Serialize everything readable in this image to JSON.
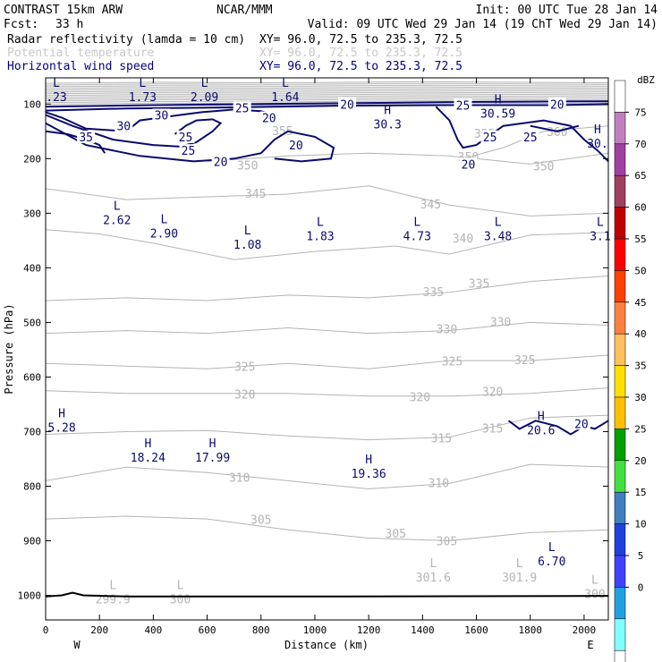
{
  "header": {
    "model": "CONTRAST 15km ARW",
    "org": "NCAR/MMM",
    "init": "Init: 00 UTC Tue 28 Jan 14",
    "fcst_label": "Fcst:",
    "fcst_value": "33 h",
    "valid": "Valid: 09 UTC Wed 29 Jan 14 (19 ChT Wed 29 Jan 14)",
    "fields": [
      {
        "name": "Radar reflectivity (lamda = 10 cm)",
        "xy": "XY=  96.0, 72.5 to 235.3, 72.5",
        "color": "#000000"
      },
      {
        "name": "Potential temperature",
        "xy": "XY=  96.0, 72.5 to 235.3, 72.5",
        "color": "#c8c8c8"
      },
      {
        "name": "Horizontal wind speed",
        "xy": "XY=  96.0, 72.5 to 235.3, 72.5",
        "color": "#000080"
      }
    ]
  },
  "colors": {
    "theta": "#b4b4b4",
    "wind": "#0a0a6e",
    "terrain": "#000000"
  },
  "chart_data": {
    "type": "cross-section contour",
    "xlabel": "Distance (km)",
    "ylabel": "Pressure (hPa)",
    "xlim": [
      0,
      2090
    ],
    "ylim": [
      1045,
      52
    ],
    "x_ticks": [
      0,
      200,
      400,
      600,
      800,
      1000,
      1200,
      1400,
      1600,
      1800,
      2000
    ],
    "y_ticks": [
      100,
      200,
      300,
      400,
      500,
      600,
      700,
      800,
      900,
      1000
    ],
    "x_ends": [
      "W",
      "E"
    ],
    "colorbar": {
      "title": "dBZ",
      "levels": [
        "75",
        "70",
        "65",
        "60",
        "55",
        "50",
        "45",
        "40",
        "35",
        "30",
        "25",
        "20",
        "15",
        "10",
        "5",
        "0"
      ],
      "colors": [
        "#ffffff",
        "#c080c0",
        "#a040a0",
        "#a04060",
        "#c00000",
        "#ff0000",
        "#ff4000",
        "#ff8040",
        "#ffc060",
        "#ffe000",
        "#ffc000",
        "#00a000",
        "#40e040",
        "#4080c0",
        "#2040e0",
        "#4040ff",
        "#20a0e0",
        "#80ffff",
        "#ffffff"
      ]
    },
    "theta_isolines": [
      {
        "value": "360",
        "points": [
          [
            1550,
            200
          ],
          [
            1700,
            180
          ],
          [
            1850,
            150
          ],
          [
            2090,
            140
          ]
        ]
      },
      {
        "value": "350",
        "points": [
          [
            600,
            205
          ],
          [
            900,
            195
          ],
          [
            1200,
            190
          ],
          [
            1500,
            195
          ],
          [
            1800,
            210
          ],
          [
            2090,
            190
          ]
        ]
      },
      {
        "value": "345",
        "points": [
          [
            0,
            255
          ],
          [
            300,
            275
          ],
          [
            600,
            270
          ],
          [
            900,
            265
          ],
          [
            1200,
            250
          ],
          [
            1500,
            285
          ],
          [
            1800,
            305
          ],
          [
            2090,
            300
          ]
        ]
      },
      {
        "value": "340",
        "points": [
          [
            0,
            330
          ],
          [
            200,
            338
          ],
          [
            400,
            355
          ],
          [
            700,
            385
          ],
          [
            1000,
            370
          ],
          [
            1300,
            360
          ],
          [
            1500,
            375
          ],
          [
            1800,
            340
          ],
          [
            2090,
            335
          ]
        ]
      },
      {
        "value": "335",
        "points": [
          [
            0,
            460
          ],
          [
            300,
            455
          ],
          [
            600,
            460
          ],
          [
            900,
            450
          ],
          [
            1200,
            455
          ],
          [
            1500,
            445
          ],
          [
            1800,
            425
          ],
          [
            2090,
            415
          ]
        ]
      },
      {
        "value": "330",
        "points": [
          [
            0,
            520
          ],
          [
            300,
            515
          ],
          [
            600,
            520
          ],
          [
            900,
            510
          ],
          [
            1200,
            520
          ],
          [
            1500,
            515
          ],
          [
            1800,
            500
          ],
          [
            2090,
            505
          ]
        ]
      },
      {
        "value": "325",
        "points": [
          [
            0,
            575
          ],
          [
            300,
            580
          ],
          [
            600,
            585
          ],
          [
            900,
            575
          ],
          [
            1200,
            585
          ],
          [
            1500,
            570
          ],
          [
            1800,
            570
          ],
          [
            2090,
            560
          ]
        ]
      },
      {
        "value": "320",
        "points": [
          [
            0,
            625
          ],
          [
            300,
            630
          ],
          [
            600,
            630
          ],
          [
            900,
            630
          ],
          [
            1200,
            635
          ],
          [
            1500,
            635
          ],
          [
            1800,
            630
          ],
          [
            2090,
            620
          ]
        ]
      },
      {
        "value": "315",
        "points": [
          [
            0,
            705
          ],
          [
            300,
            700
          ],
          [
            600,
            698
          ],
          [
            900,
            708
          ],
          [
            1200,
            715
          ],
          [
            1500,
            710
          ],
          [
            1800,
            675
          ],
          [
            2090,
            670
          ]
        ]
      },
      {
        "value": "310",
        "points": [
          [
            0,
            790
          ],
          [
            300,
            765
          ],
          [
            600,
            775
          ],
          [
            900,
            790
          ],
          [
            1200,
            805
          ],
          [
            1500,
            795
          ],
          [
            1800,
            760
          ],
          [
            2090,
            765
          ]
        ]
      },
      {
        "value": "305",
        "points": [
          [
            0,
            860
          ],
          [
            300,
            855
          ],
          [
            600,
            860
          ],
          [
            900,
            880
          ],
          [
            1200,
            895
          ],
          [
            1500,
            900
          ],
          [
            1800,
            885
          ],
          [
            2090,
            880
          ]
        ]
      }
    ],
    "theta_labels": [
      {
        "text": "360",
        "x": 1900,
        "p": 152
      },
      {
        "text": "355",
        "x": 880,
        "p": 150
      },
      {
        "text": "355",
        "x": 1630,
        "p": 155
      },
      {
        "text": "350",
        "x": 750,
        "p": 213
      },
      {
        "text": "350",
        "x": 1570,
        "p": 198
      },
      {
        "text": "350",
        "x": 1850,
        "p": 215
      },
      {
        "text": "345",
        "x": 780,
        "p": 265
      },
      {
        "text": "345",
        "x": 1430,
        "p": 285
      },
      {
        "text": "340",
        "x": 1550,
        "p": 347
      },
      {
        "text": "335",
        "x": 1440,
        "p": 445
      },
      {
        "text": "335",
        "x": 1610,
        "p": 430
      },
      {
        "text": "330",
        "x": 1490,
        "p": 513
      },
      {
        "text": "330",
        "x": 1690,
        "p": 500
      },
      {
        "text": "325",
        "x": 740,
        "p": 582
      },
      {
        "text": "325",
        "x": 1510,
        "p": 572
      },
      {
        "text": "325",
        "x": 1780,
        "p": 570
      },
      {
        "text": "320",
        "x": 740,
        "p": 633
      },
      {
        "text": "320",
        "x": 1390,
        "p": 638
      },
      {
        "text": "320",
        "x": 1660,
        "p": 628
      },
      {
        "text": "315",
        "x": 1470,
        "p": 713
      },
      {
        "text": "315",
        "x": 1660,
        "p": 695
      },
      {
        "text": "310",
        "x": 720,
        "p": 785
      },
      {
        "text": "310",
        "x": 1460,
        "p": 795
      },
      {
        "text": "305",
        "x": 800,
        "p": 862
      },
      {
        "text": "305",
        "x": 1300,
        "p": 888
      },
      {
        "text": "305",
        "x": 1490,
        "p": 902
      }
    ],
    "extrema": [
      {
        "type": "L",
        "value": "2.62",
        "x": 265,
        "p": 300,
        "field": "wind"
      },
      {
        "type": "L",
        "value": "2.90",
        "x": 440,
        "p": 325,
        "field": "wind"
      },
      {
        "type": "L",
        "value": "1.08",
        "x": 750,
        "p": 345,
        "field": "wind"
      },
      {
        "type": "L",
        "value": "1.83",
        "x": 1020,
        "p": 330,
        "field": "wind"
      },
      {
        "type": "L",
        "value": "4.73",
        "x": 1380,
        "p": 330,
        "field": "wind"
      },
      {
        "type": "L",
        "value": "3.48",
        "x": 1680,
        "p": 330,
        "field": "wind"
      },
      {
        "type": "L",
        "value": "3.1",
        "x": 2060,
        "p": 330,
        "field": "wind"
      },
      {
        "type": "L",
        "value": ".23",
        "x": 40,
        "p": 75,
        "field": "wind"
      },
      {
        "type": "L",
        "value": "1.73",
        "x": 360,
        "p": 75,
        "field": "wind"
      },
      {
        "type": "L",
        "value": "2.09",
        "x": 590,
        "p": 75,
        "field": "wind"
      },
      {
        "type": "L",
        "value": "1.64",
        "x": 890,
        "p": 75,
        "field": "wind"
      },
      {
        "type": "H",
        "value": "30.3",
        "x": 1270,
        "p": 125,
        "field": "wind"
      },
      {
        "type": "H",
        "value": "30.59",
        "x": 1680,
        "p": 105,
        "field": "wind"
      },
      {
        "type": "H",
        "value": "30.",
        "x": 2050,
        "p": 160,
        "field": "wind"
      },
      {
        "type": "H",
        "value": "5.28",
        "x": 60,
        "p": 680,
        "field": "wind"
      },
      {
        "type": "H",
        "value": "18.24",
        "x": 380,
        "p": 735,
        "field": "wind"
      },
      {
        "type": "H",
        "value": "17.99",
        "x": 620,
        "p": 735,
        "field": "wind"
      },
      {
        "type": "H",
        "value": "19.36",
        "x": 1200,
        "p": 765,
        "field": "wind"
      },
      {
        "type": "H",
        "value": "20.6",
        "x": 1840,
        "p": 685,
        "field": "wind"
      },
      {
        "type": "L",
        "value": "6.70",
        "x": 1880,
        "p": 925,
        "field": "wind"
      },
      {
        "type": "L",
        "value": "301.6",
        "x": 1440,
        "p": 955,
        "field": "theta"
      },
      {
        "type": "L",
        "value": "301.9",
        "x": 1760,
        "p": 955,
        "field": "theta"
      },
      {
        "type": "L",
        "value": "299.9",
        "x": 250,
        "p": 995,
        "field": "theta"
      },
      {
        "type": "L",
        "value": "300",
        "x": 500,
        "p": 995,
        "field": "theta"
      },
      {
        "type": "L",
        "value": "300",
        "x": 2040,
        "p": 985,
        "field": "theta"
      }
    ],
    "wind_isolines": [
      {
        "value": "25",
        "points": [
          [
            0,
            112
          ],
          [
            300,
            108
          ],
          [
            700,
            106
          ],
          [
            1100,
            103
          ],
          [
            1500,
            102
          ],
          [
            1900,
            102
          ],
          [
            2090,
            100
          ]
        ]
      },
      {
        "value": "20",
        "points": [
          [
            0,
            105
          ],
          [
            400,
            102
          ],
          [
            800,
            100
          ],
          [
            1200,
            98
          ],
          [
            1600,
            96
          ],
          [
            2090,
            95
          ]
        ]
      },
      {
        "value": "30",
        "points": [
          [
            0,
            115
          ],
          [
            60,
            125
          ],
          [
            150,
            145
          ],
          [
            300,
            150
          ],
          [
            350,
            130
          ],
          [
            500,
            120
          ],
          [
            580,
            115
          ],
          [
            700,
            110
          ],
          [
            800,
            113
          ],
          [
            850,
            120
          ],
          [
            840,
            130
          ]
        ]
      },
      {
        "value": "35",
        "points": [
          [
            0,
            150
          ],
          [
            80,
            155
          ],
          [
            150,
            165
          ],
          [
            200,
            175
          ],
          [
            220,
            190
          ]
        ]
      },
      {
        "value": "25",
        "points": [
          [
            0,
            120
          ],
          [
            100,
            140
          ],
          [
            250,
            165
          ],
          [
            400,
            175
          ],
          [
            500,
            178
          ],
          [
            560,
            170
          ],
          [
            620,
            150
          ],
          [
            650,
            135
          ],
          [
            620,
            128
          ],
          [
            560,
            130
          ],
          [
            520,
            140
          ],
          [
            480,
            155
          ]
        ]
      },
      {
        "value": "20",
        "points": [
          [
            0,
            135
          ],
          [
            150,
            175
          ],
          [
            350,
            195
          ],
          [
            550,
            205
          ],
          [
            700,
            200
          ],
          [
            800,
            190
          ],
          [
            850,
            165
          ],
          [
            900,
            150
          ],
          [
            1000,
            160
          ],
          [
            1070,
            180
          ],
          [
            1060,
            200
          ],
          [
            950,
            205
          ],
          [
            850,
            200
          ]
        ]
      },
      {
        "value": "20",
        "points": [
          [
            1450,
            105
          ],
          [
            1500,
            130
          ],
          [
            1530,
            165
          ],
          [
            1550,
            180
          ],
          [
            1600,
            175
          ],
          [
            1700,
            140
          ],
          [
            1850,
            130
          ],
          [
            1950,
            140
          ],
          [
            2000,
            165
          ],
          [
            2050,
            185
          ],
          [
            2090,
            205
          ]
        ]
      },
      {
        "value": "25",
        "points": [
          [
            1800,
            140
          ],
          [
            1900,
            150
          ],
          [
            1980,
            140
          ]
        ]
      },
      {
        "value": "20",
        "points": [
          [
            1720,
            680
          ],
          [
            1760,
            695
          ],
          [
            1820,
            680
          ],
          [
            1900,
            690
          ],
          [
            1950,
            705
          ],
          [
            2000,
            690
          ],
          [
            2040,
            695
          ],
          [
            2090,
            680
          ]
        ]
      }
    ],
    "wind_labels": [
      {
        "text": "35",
        "x": 150,
        "p": 160
      },
      {
        "text": "30",
        "x": 290,
        "p": 140
      },
      {
        "text": "30",
        "x": 430,
        "p": 120
      },
      {
        "text": "25",
        "x": 520,
        "p": 160
      },
      {
        "text": "25",
        "x": 530,
        "p": 185
      },
      {
        "text": "20",
        "x": 650,
        "p": 205
      },
      {
        "text": "20",
        "x": 830,
        "p": 125
      },
      {
        "text": "20",
        "x": 930,
        "p": 175
      },
      {
        "text": "25",
        "x": 730,
        "p": 107
      },
      {
        "text": "20",
        "x": 1120,
        "p": 100
      },
      {
        "text": "25",
        "x": 1550,
        "p": 102
      },
      {
        "text": "20",
        "x": 1900,
        "p": 100
      },
      {
        "text": "20",
        "x": 1570,
        "p": 210
      },
      {
        "text": "25",
        "x": 1650,
        "p": 160
      },
      {
        "text": "25",
        "x": 1800,
        "p": 160
      },
      {
        "text": "20",
        "x": 1990,
        "p": 685
      }
    ],
    "terrain_line": [
      [
        0,
        1002
      ],
      [
        60,
        1000
      ],
      [
        100,
        995
      ],
      [
        140,
        1000
      ],
      [
        300,
        1002
      ],
      [
        1000,
        1002
      ],
      [
        2090,
        1001
      ]
    ]
  }
}
